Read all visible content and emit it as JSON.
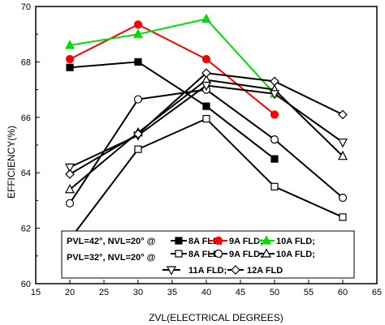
{
  "chart_data": {
    "type": "line",
    "title": "",
    "xlabel": "ZVL(ELECTRICAL DEGREES)",
    "ylabel": "EFFICIENCY(%)",
    "xlim": [
      15,
      65
    ],
    "ylim": [
      60,
      70
    ],
    "xticks": [
      15,
      20,
      25,
      30,
      35,
      40,
      45,
      50,
      55,
      60,
      65
    ],
    "yticks": [
      60,
      62,
      64,
      66,
      68,
      70
    ],
    "x": [
      20,
      30,
      40,
      50,
      60
    ],
    "grid": false,
    "legend_position": "bottom-left",
    "series": [
      {
        "name": "8A FLD;",
        "group": "pvl42",
        "color": "#000000",
        "marker": "square-filled",
        "x": [
          20,
          30,
          40,
          50
        ],
        "values": [
          67.8,
          68.0,
          66.4,
          64.5
        ]
      },
      {
        "name": "9A FLD;",
        "group": "pvl42",
        "color": "#ff0000",
        "marker": "circle-filled",
        "x": [
          20,
          30,
          40,
          50
        ],
        "values": [
          68.1,
          69.35,
          68.1,
          66.1
        ]
      },
      {
        "name": "10A FLD;",
        "group": "pvl42",
        "color": "#00dd00",
        "marker": "triangle-filled",
        "x": [
          20,
          30,
          40,
          50
        ],
        "values": [
          68.6,
          69.0,
          69.55,
          66.85
        ]
      },
      {
        "name": "8A FLD;",
        "group": "pvl32",
        "color": "#000000",
        "marker": "square-open",
        "x": [
          20,
          30,
          40,
          50,
          60
        ],
        "values": [
          61.6,
          64.85,
          65.95,
          63.5,
          62.4
        ]
      },
      {
        "name": "9A FLD;",
        "group": "pvl32",
        "color": "#000000",
        "marker": "circle-open",
        "x": [
          20,
          30,
          40,
          50,
          60
        ],
        "values": [
          62.9,
          66.65,
          67.0,
          65.2,
          63.1
        ]
      },
      {
        "name": "10A FLD;",
        "group": "pvl32",
        "color": "#000000",
        "marker": "triangle-up-open",
        "x": [
          20,
          30,
          40,
          50,
          60
        ],
        "values": [
          63.4,
          65.45,
          67.35,
          67.0,
          64.6
        ]
      },
      {
        "name": "11A FLD;",
        "group": "pvl32",
        "color": "#000000",
        "marker": "triangle-down-open",
        "x": [
          20,
          30,
          40,
          50,
          60
        ],
        "values": [
          64.2,
          65.35,
          67.15,
          66.85,
          65.1
        ]
      },
      {
        "name": "12A FLD",
        "group": "pvl32",
        "color": "#000000",
        "marker": "diamond-open",
        "x": [
          20,
          30,
          40,
          50,
          60
        ],
        "values": [
          63.95,
          65.4,
          67.6,
          67.3,
          66.1
        ]
      }
    ]
  },
  "legend": {
    "row1_label": "PVL=42°, NVL=20° @",
    "row2_label": "PVL=32°, NVL=20° @"
  }
}
